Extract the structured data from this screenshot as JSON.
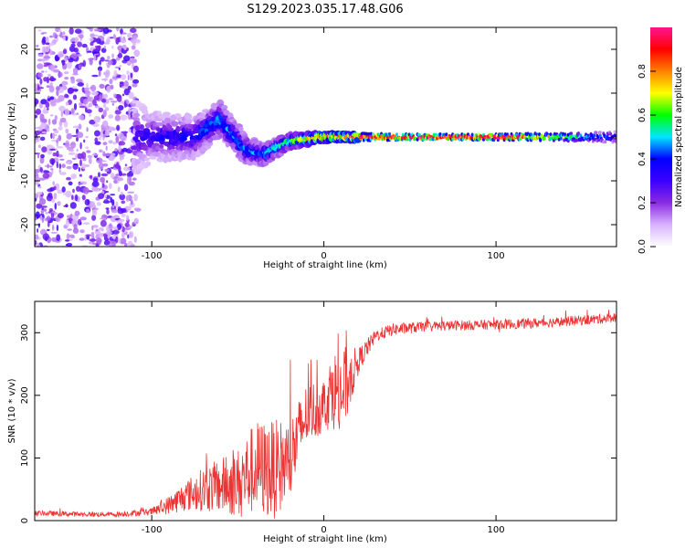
{
  "title": "S129.2023.035.17.48.G06",
  "chart_data": [
    {
      "type": "heatmap",
      "name": "spectrogram",
      "xlabel": "Height of straight line (km)",
      "ylabel": "Frequency (Hz)",
      "xlim": [
        -168,
        170
      ],
      "ylim": [
        -25,
        25
      ],
      "xticks": [
        -100,
        0,
        100
      ],
      "yticks": [
        -20,
        -10,
        0,
        10,
        20
      ],
      "colorbar": {
        "label": "Normalized spectral amplitude",
        "range": [
          0,
          1
        ],
        "ticks": [
          "0.0",
          "0.2",
          "0.4",
          "0.6",
          "0.8"
        ],
        "colors": [
          "#ffffff",
          "#d9b3ff",
          "#8a2be2",
          "#3b00ff",
          "#0000ff",
          "#00e5ff",
          "#00ff00",
          "#ffff00",
          "#ff8000",
          "#ff0000",
          "#ff1493"
        ]
      },
      "description_points": [
        {
          "x": -150,
          "f_center": 0,
          "f_spread": 25,
          "amplitude": 0.15
        },
        {
          "x": -100,
          "f_center": 0,
          "f_spread": 7,
          "amplitude": 0.3
        },
        {
          "x": -75,
          "f_center": 0,
          "f_spread": 6,
          "amplitude": 0.35
        },
        {
          "x": -60,
          "f_center": 4,
          "f_spread": 5,
          "amplitude": 0.45
        },
        {
          "x": -45,
          "f_center": -3,
          "f_spread": 4,
          "amplitude": 0.4
        },
        {
          "x": -35,
          "f_center": -4,
          "f_spread": 3,
          "amplitude": 0.45
        },
        {
          "x": -20,
          "f_center": -1,
          "f_spread": 2,
          "amplitude": 0.55
        },
        {
          "x": 0,
          "f_center": 0,
          "f_spread": 1.2,
          "amplitude": 0.8
        },
        {
          "x": 50,
          "f_center": 0,
          "f_spread": 0.8,
          "amplitude": 0.95
        },
        {
          "x": 100,
          "f_center": 0,
          "f_spread": 0.8,
          "amplitude": 0.95
        },
        {
          "x": 150,
          "f_center": 0,
          "f_spread": 1.2,
          "amplitude": 0.5
        },
        {
          "x": 170,
          "f_center": 0,
          "f_spread": 1.5,
          "amplitude": 0.35
        }
      ]
    },
    {
      "type": "line",
      "name": "snr",
      "xlabel": "Height of straight line (km)",
      "ylabel": "SNR (10 * v/v)",
      "xlim": [
        -168,
        170
      ],
      "ylim": [
        0,
        350
      ],
      "xticks": [
        -100,
        0,
        100
      ],
      "yticks": [
        0,
        100,
        200,
        300
      ],
      "series": [
        {
          "name": "SNR",
          "color": "#ee3333",
          "x": [
            -168,
            -140,
            -120,
            -100,
            -90,
            -80,
            -70,
            -60,
            -50,
            -40,
            -30,
            -20,
            -10,
            0,
            5,
            10,
            20,
            30,
            40,
            60,
            80,
            100,
            120,
            140,
            160,
            170
          ],
          "y": [
            12,
            10,
            10,
            14,
            25,
            40,
            50,
            55,
            60,
            85,
            80,
            95,
            170,
            185,
            210,
            200,
            255,
            295,
            305,
            310,
            312,
            313,
            315,
            318,
            322,
            325
          ],
          "noise": [
            4,
            4,
            4,
            6,
            15,
            25,
            35,
            45,
            55,
            75,
            80,
            70,
            50,
            45,
            60,
            80,
            20,
            10,
            10,
            8,
            8,
            8,
            8,
            8,
            8,
            8
          ]
        }
      ]
    }
  ]
}
